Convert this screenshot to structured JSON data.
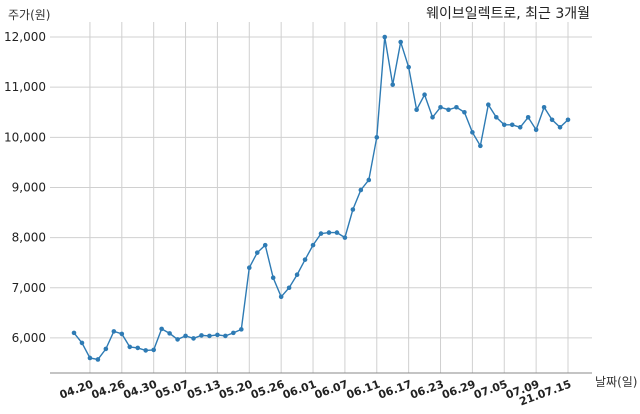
{
  "chart_data": {
    "type": "line",
    "title": "웨이브일렉트로, 최근 3개월",
    "ylabel": "주가(원)",
    "xlabel": "날짜(일)",
    "ylim": [
      5300,
      12300
    ],
    "yticks": [
      6000,
      7000,
      8000,
      9000,
      10000,
      11000,
      12000
    ],
    "ytick_labels": [
      "6,000",
      "7,000",
      "8,000",
      "9,000",
      "10,000",
      "11,000",
      "12,000"
    ],
    "grid": true,
    "series_color": "#2e7bb4",
    "xtick_labels": [
      "04.20",
      "04.26",
      "04.30",
      "05.07",
      "05.13",
      "05.20",
      "05.26",
      "06.01",
      "06.07",
      "06.11",
      "06.17",
      "06.23",
      "06.29",
      "07.05",
      "07.09",
      "21.07.15"
    ],
    "xtick_index": [
      2,
      6,
      10,
      14,
      18,
      22,
      26,
      30,
      34,
      38,
      42,
      46,
      50,
      54,
      58,
      62
    ],
    "values": [
      6100,
      5900,
      5600,
      5570,
      5780,
      6130,
      6080,
      5820,
      5800,
      5750,
      5760,
      6180,
      6090,
      5970,
      6040,
      5990,
      6050,
      6040,
      6060,
      6040,
      6100,
      6170,
      7400,
      7700,
      7850,
      7200,
      6820,
      7000,
      7260,
      7560,
      7850,
      8080,
      8100,
      8100,
      8000,
      8560,
      8950,
      9150,
      10000,
      12000,
      11050,
      11900,
      11400,
      10550,
      10850,
      10400,
      10600,
      10550,
      10600,
      10500,
      10100,
      9830,
      10650,
      10400,
      10250,
      10250,
      10200,
      10400,
      10150,
      10600,
      10350,
      10200,
      10350
    ]
  }
}
